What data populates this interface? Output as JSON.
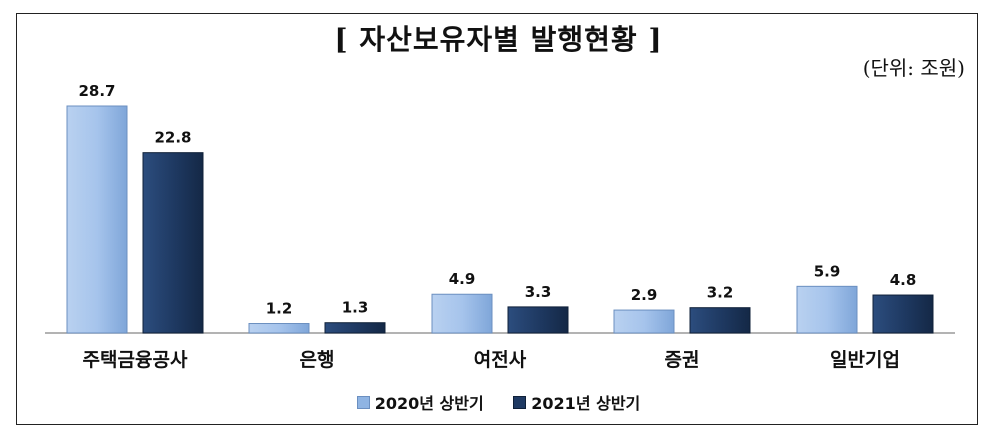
{
  "chart_data": {
    "type": "bar",
    "title": "[ 자산보유자별 발행현황 ]",
    "unit_label": "(단위: 조원)",
    "categories": [
      "주택금융공사",
      "은행",
      "여전사",
      "증권",
      "일반기업"
    ],
    "series": [
      {
        "name": "2020년 상반기",
        "values": [
          28.7,
          1.2,
          4.9,
          2.9,
          5.9
        ]
      },
      {
        "name": "2021년 상반기",
        "values": [
          22.8,
          1.3,
          3.3,
          3.2,
          4.8
        ]
      }
    ],
    "ylim": [
      0,
      29.5
    ],
    "grid": false,
    "legend": "bottom",
    "colors": {
      "series1": "#8fb4e3",
      "series1_light": "#c9dcf4",
      "series2": "#1f3a63",
      "series2_light": "#2c4d7e"
    }
  }
}
